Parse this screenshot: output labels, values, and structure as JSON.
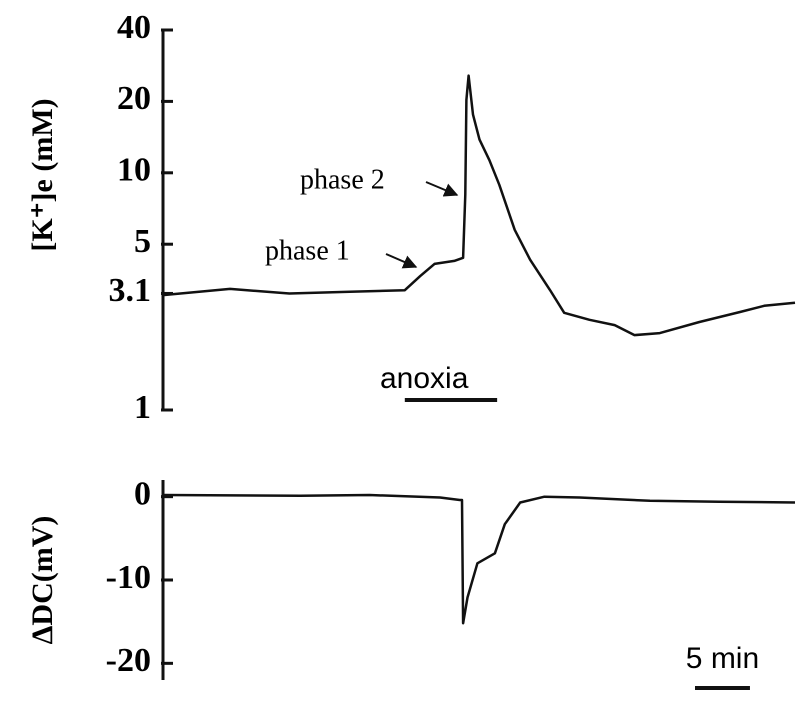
{
  "chart_data": [
    {
      "type": "line",
      "ylabel": "[K⁺]e (mM)",
      "log_y": true,
      "xlim": [
        0,
        57.5
      ],
      "ylim": [
        1,
        40
      ],
      "yticks": [
        1,
        3.1,
        5,
        10,
        20,
        40
      ],
      "x": [
        0,
        6.1,
        11.5,
        17,
        22,
        23.4,
        24.7,
        26.5,
        27.3,
        27.5,
        27.6,
        27.8,
        28.2,
        28.8,
        29.7,
        30.6,
        32,
        33.4,
        35.2,
        36.5,
        38.8,
        41.1,
        42.9,
        45.2,
        48.8,
        52.5,
        54.7,
        57.5
      ],
      "values": [
        3.05,
        3.24,
        3.1,
        3.15,
        3.2,
        3.67,
        4.13,
        4.25,
        4.38,
        8.1,
        20.3,
        25.7,
        17.6,
        13.8,
        11.3,
        8.9,
        5.75,
        4.3,
        3.21,
        2.57,
        2.4,
        2.28,
        2.07,
        2.11,
        2.35,
        2.59,
        2.75,
        2.83
      ],
      "color": "#111111",
      "annotations": [
        "phase 1",
        "phase 2"
      ],
      "anoxia": {
        "label": "anoxia",
        "start": 22,
        "end": 30.4
      }
    },
    {
      "type": "line",
      "ylabel": "ΔDC(mV)",
      "xlim": [
        0,
        57.5
      ],
      "ylim": [
        -22,
        2
      ],
      "yticks": [
        0,
        -10,
        -20
      ],
      "x": [
        0,
        12.5,
        18.8,
        25.2,
        27,
        27.2,
        27.3,
        27.7,
        28.6,
        30.2,
        31.1,
        32.5,
        34.7,
        37.9,
        44.3,
        50.6,
        57.5
      ],
      "values": [
        0.2,
        0.1,
        0.2,
        -0.1,
        -0.4,
        -0.4,
        -15.2,
        -12.1,
        -8,
        -6.8,
        -3.3,
        -0.7,
        0,
        -0.1,
        -0.5,
        -0.6,
        -0.7
      ],
      "color": "#111111",
      "scale_bar": {
        "value": 5,
        "label": "5 min"
      }
    }
  ]
}
